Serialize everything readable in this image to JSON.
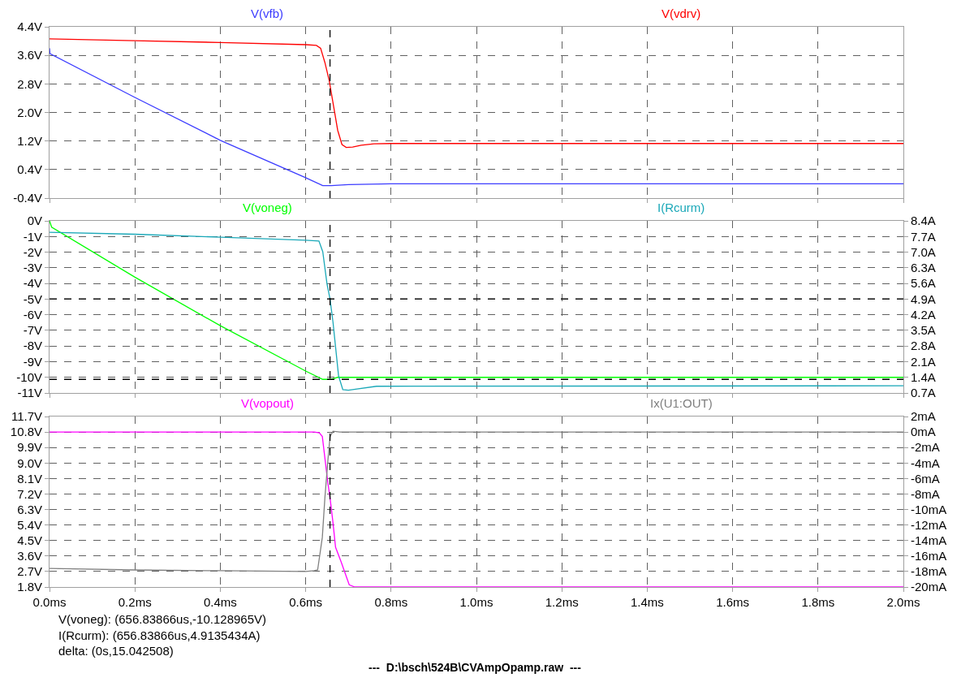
{
  "chart_data": [
    {
      "type": "line",
      "xlim": [
        0,
        2
      ],
      "tick_labels": "y",
      "grid": true,
      "xticks": [
        {
          "value": 0,
          "label": null
        },
        {
          "value": 0.2,
          "label": null
        },
        {
          "value": 0.4,
          "label": null
        },
        {
          "value": 0.6,
          "label": null
        },
        {
          "value": 0.8,
          "label": null
        },
        {
          "value": 1.0,
          "label": null
        },
        {
          "value": 1.2,
          "label": null
        },
        {
          "value": 1.4,
          "label": null
        },
        {
          "value": 1.6,
          "label": null
        },
        {
          "value": 1.8,
          "label": null
        },
        {
          "value": 2.0,
          "label": null
        }
      ],
      "ylim": [
        -0.4,
        4.4
      ],
      "yticks": [
        {
          "value": -0.4,
          "label": "-0.4V"
        },
        {
          "value": 0.4,
          "label": "0.4V"
        },
        {
          "value": 1.2,
          "label": "1.2V"
        },
        {
          "value": 2.0,
          "label": "2.0V"
        },
        {
          "value": 2.8,
          "label": "2.8V"
        },
        {
          "value": 3.6,
          "label": "3.6V"
        },
        {
          "value": 4.4,
          "label": "4.4V"
        }
      ],
      "series": [
        {
          "name": "V(vfb)",
          "color": "#3c3cff",
          "x": [
            0,
            0.001,
            0.2,
            0.4,
            0.6,
            0.64,
            0.66,
            0.7,
            0.8,
            2.0
          ],
          "values": [
            3.8,
            3.65,
            2.42,
            1.22,
            0.17,
            -0.05,
            -0.05,
            -0.02,
            0.0,
            0.0
          ]
        },
        {
          "name": "V(vdrv)",
          "color": "#ff0000",
          "x": [
            0,
            0.2,
            0.4,
            0.6,
            0.625,
            0.635,
            0.645,
            0.655,
            0.665,
            0.675,
            0.685,
            0.695,
            0.71,
            0.73,
            0.76,
            0.8,
            2.0
          ],
          "values": [
            4.06,
            4.01,
            3.96,
            3.9,
            3.88,
            3.8,
            3.4,
            2.9,
            2.2,
            1.5,
            1.1,
            1.02,
            1.03,
            1.08,
            1.12,
            1.13,
            1.13
          ]
        }
      ],
      "ref_lines": [
        {
          "axis": "x",
          "value": 0.657,
          "color": "#000000",
          "line_style": "dashed"
        }
      ]
    },
    {
      "type": "line",
      "xlim": [
        0,
        2
      ],
      "tick_labels": "y",
      "grid": true,
      "xticks": [
        {
          "value": 0,
          "label": null
        },
        {
          "value": 0.2,
          "label": null
        },
        {
          "value": 0.4,
          "label": null
        },
        {
          "value": 0.6,
          "label": null
        },
        {
          "value": 0.8,
          "label": null
        },
        {
          "value": 1.0,
          "label": null
        },
        {
          "value": 1.2,
          "label": null
        },
        {
          "value": 1.4,
          "label": null
        },
        {
          "value": 1.6,
          "label": null
        },
        {
          "value": 1.8,
          "label": null
        },
        {
          "value": 2.0,
          "label": null
        }
      ],
      "ylim": [
        -11,
        0
      ],
      "yticks": [
        {
          "value": -11,
          "label": "-11V"
        },
        {
          "value": -10,
          "label": "-10V"
        },
        {
          "value": -9,
          "label": "-9V"
        },
        {
          "value": -8,
          "label": "-8V"
        },
        {
          "value": -7,
          "label": "-7V"
        },
        {
          "value": -6,
          "label": "-6V"
        },
        {
          "value": -5,
          "label": "-5V"
        },
        {
          "value": -4,
          "label": "-4V"
        },
        {
          "value": -3,
          "label": "-3V"
        },
        {
          "value": -2,
          "label": "-2V"
        },
        {
          "value": -1,
          "label": "-1V"
        },
        {
          "value": 0,
          "label": "0V"
        }
      ],
      "y2lim": [
        0.7,
        8.4
      ],
      "y2ticks": [
        {
          "value": 0.7,
          "label": "0.7A"
        },
        {
          "value": 1.4,
          "label": "1.4A"
        },
        {
          "value": 2.1,
          "label": "2.1A"
        },
        {
          "value": 2.8,
          "label": "2.8A"
        },
        {
          "value": 3.5,
          "label": "3.5A"
        },
        {
          "value": 4.2,
          "label": "4.2A"
        },
        {
          "value": 4.9,
          "label": "4.9A"
        },
        {
          "value": 5.6,
          "label": "5.6A"
        },
        {
          "value": 6.3,
          "label": "6.3A"
        },
        {
          "value": 7.0,
          "label": "7.0A"
        },
        {
          "value": 7.7,
          "label": "7.7A"
        },
        {
          "value": 8.4,
          "label": "8.4A"
        }
      ],
      "series": [
        {
          "name": "V(voneg)",
          "color": "#00ff00",
          "x": [
            0,
            0.005,
            0.2,
            0.4,
            0.6,
            0.64,
            0.66,
            0.675,
            2.0
          ],
          "values": [
            0,
            -0.4,
            -3.6,
            -6.7,
            -9.6,
            -10.13,
            -10.13,
            -10.0,
            -10.0
          ]
        },
        {
          "name": "I(Rcurm)",
          "color": "#1aa8b8",
          "axis": "y2",
          "x": [
            0,
            0.2,
            0.4,
            0.6,
            0.631,
            0.64,
            0.65,
            0.657,
            0.664,
            0.677,
            0.687,
            0.7,
            0.72,
            0.766,
            2.0
          ],
          "values": [
            7.89,
            7.8,
            7.67,
            7.53,
            7.5,
            7.02,
            5.57,
            4.91,
            3.87,
            1.47,
            0.85,
            0.82,
            0.88,
            1.0,
            1.02
          ]
        }
      ],
      "ref_lines": [
        {
          "axis": "x",
          "value": 0.657,
          "color": "#000000",
          "line_style": "dashed"
        },
        {
          "axis": "y",
          "value": -10.13,
          "color": "#000000",
          "line_style": "dashed"
        },
        {
          "axis": "y2",
          "value": 4.91,
          "color": "#000000",
          "line_style": "dashed"
        }
      ]
    },
    {
      "type": "line",
      "xlim": [
        0,
        2
      ],
      "grid": true,
      "xticks": [
        {
          "value": 0,
          "label": "0.0ms"
        },
        {
          "value": 0.2,
          "label": "0.2ms"
        },
        {
          "value": 0.4,
          "label": "0.4ms"
        },
        {
          "value": 0.6,
          "label": "0.6ms"
        },
        {
          "value": 0.8,
          "label": "0.8ms"
        },
        {
          "value": 1.0,
          "label": "1.0ms"
        },
        {
          "value": 1.2,
          "label": "1.2ms"
        },
        {
          "value": 1.4,
          "label": "1.4ms"
        },
        {
          "value": 1.6,
          "label": "1.6ms"
        },
        {
          "value": 1.8,
          "label": "1.8ms"
        },
        {
          "value": 2.0,
          "label": "2.0ms"
        }
      ],
      "ylim": [
        1.8,
        11.7
      ],
      "yticks": [
        {
          "value": 1.8,
          "label": "1.8V"
        },
        {
          "value": 2.7,
          "label": "2.7V"
        },
        {
          "value": 3.6,
          "label": "3.6V"
        },
        {
          "value": 4.5,
          "label": "4.5V"
        },
        {
          "value": 5.4,
          "label": "5.4V"
        },
        {
          "value": 6.3,
          "label": "6.3V"
        },
        {
          "value": 7.2,
          "label": "7.2V"
        },
        {
          "value": 8.1,
          "label": "8.1V"
        },
        {
          "value": 9.0,
          "label": "9.0V"
        },
        {
          "value": 9.9,
          "label": "9.9V"
        },
        {
          "value": 10.8,
          "label": "10.8V"
        },
        {
          "value": 11.7,
          "label": "11.7V"
        }
      ],
      "y2lim": [
        -20,
        2
      ],
      "y2ticks": [
        {
          "value": -20,
          "label": "-20mA"
        },
        {
          "value": -18,
          "label": "-18mA"
        },
        {
          "value": -16,
          "label": "-16mA"
        },
        {
          "value": -14,
          "label": "-14mA"
        },
        {
          "value": -12,
          "label": "-12mA"
        },
        {
          "value": -10,
          "label": "-10mA"
        },
        {
          "value": -8,
          "label": "-8mA"
        },
        {
          "value": -6,
          "label": "-6mA"
        },
        {
          "value": -4,
          "label": "-4mA"
        },
        {
          "value": -2,
          "label": "-2mA"
        },
        {
          "value": 0,
          "label": "0mA"
        },
        {
          "value": 2,
          "label": "2mA"
        }
      ],
      "series": [
        {
          "name": "V(vopout)",
          "color": "#ff00ff",
          "x": [
            0,
            0.62,
            0.632,
            0.639,
            0.652,
            0.657,
            0.664,
            0.67,
            0.683,
            0.702,
            0.715,
            2.0
          ],
          "values": [
            10.8,
            10.8,
            10.75,
            10.54,
            7.84,
            6.99,
            5.53,
            4.11,
            3.26,
            1.93,
            1.8,
            1.8
          ]
        },
        {
          "name": "Ix(U1:OUT)",
          "color": "#808080",
          "axis": "y2",
          "x": [
            0,
            0.2,
            0.4,
            0.6,
            0.62,
            0.628,
            0.639,
            0.645,
            0.652,
            0.657,
            0.664,
            0.68,
            2.0
          ],
          "values": [
            -17.6,
            -17.8,
            -17.9,
            -18.0,
            -17.9,
            -17.8,
            -13.6,
            -8.5,
            -3.7,
            -0.6,
            0.1,
            0.0,
            0.0
          ]
        }
      ],
      "ref_lines": [
        {
          "axis": "x",
          "value": 0.657,
          "color": "#000000",
          "line_style": "dashed"
        }
      ],
      "annotations": [
        "V(voneg): (656.83866us,-10.128965V)\nI(Rcurm): (656.83866us,4.9135434A)\ndelta: (0s,15.042508)",
        "---  D:\\bsch\\524B\\CVAmpOpamp.raw  ---"
      ]
    }
  ]
}
